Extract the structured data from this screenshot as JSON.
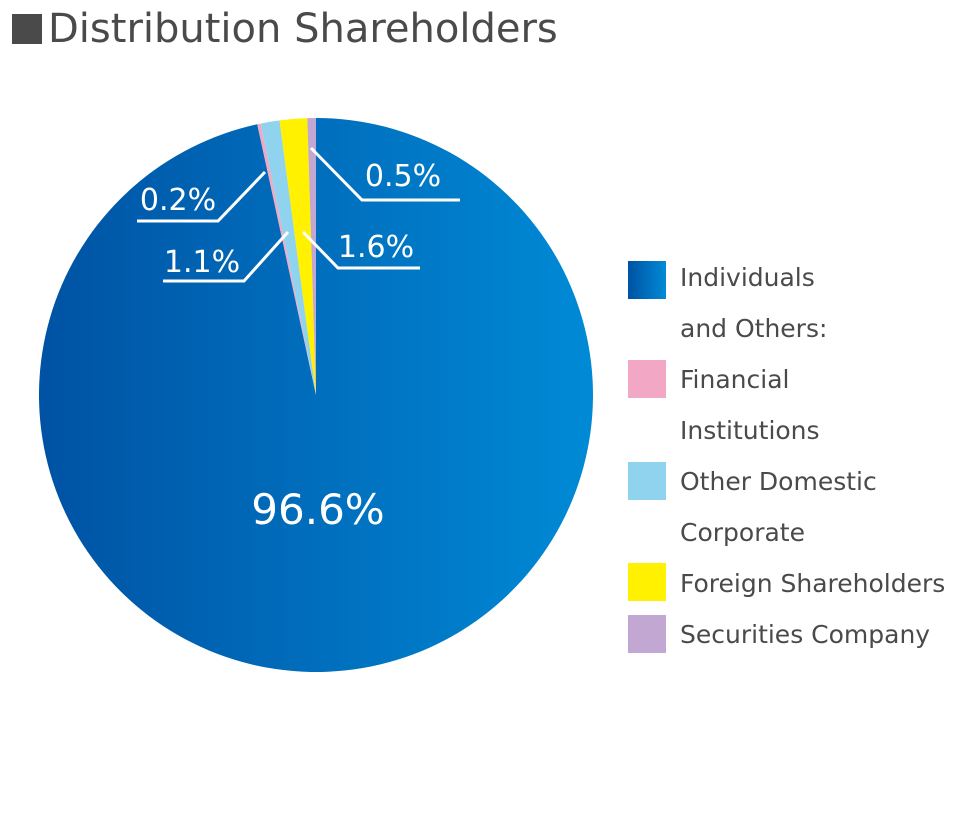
{
  "chart_data": {
    "type": "pie",
    "title": "Distribution Shareholders",
    "start": "top",
    "direction": "clockwise",
    "slices": [
      {
        "name": "Individuals and Others:",
        "legend_lines": [
          "Individuals",
          "and Others:"
        ],
        "value": 96.6,
        "label": "96.6%",
        "color": "#0068b7",
        "gradient": [
          "#0052a3",
          "#008ad6"
        ]
      },
      {
        "name": "Financial Institutions",
        "legend_lines": [
          "Financial",
          "Institutions"
        ],
        "value": 0.2,
        "label": "0.2%",
        "color": "#f2a8c4"
      },
      {
        "name": "Other Domestic Corporate",
        "legend_lines": [
          "Other Domestic",
          "Corporate"
        ],
        "value": 1.1,
        "label": "1.1%",
        "color": "#8fd3ee"
      },
      {
        "name": "Foreign Shareholders",
        "legend_lines": [
          "Foreign Shareholders"
        ],
        "value": 1.6,
        "label": "1.6%",
        "color": "#fff100"
      },
      {
        "name": "Securities Company",
        "legend_lines": [
          "Securities Company"
        ],
        "value": 0.5,
        "label": "0.5%",
        "color": "#c1a7d1"
      }
    ],
    "legend_placement": "right"
  }
}
